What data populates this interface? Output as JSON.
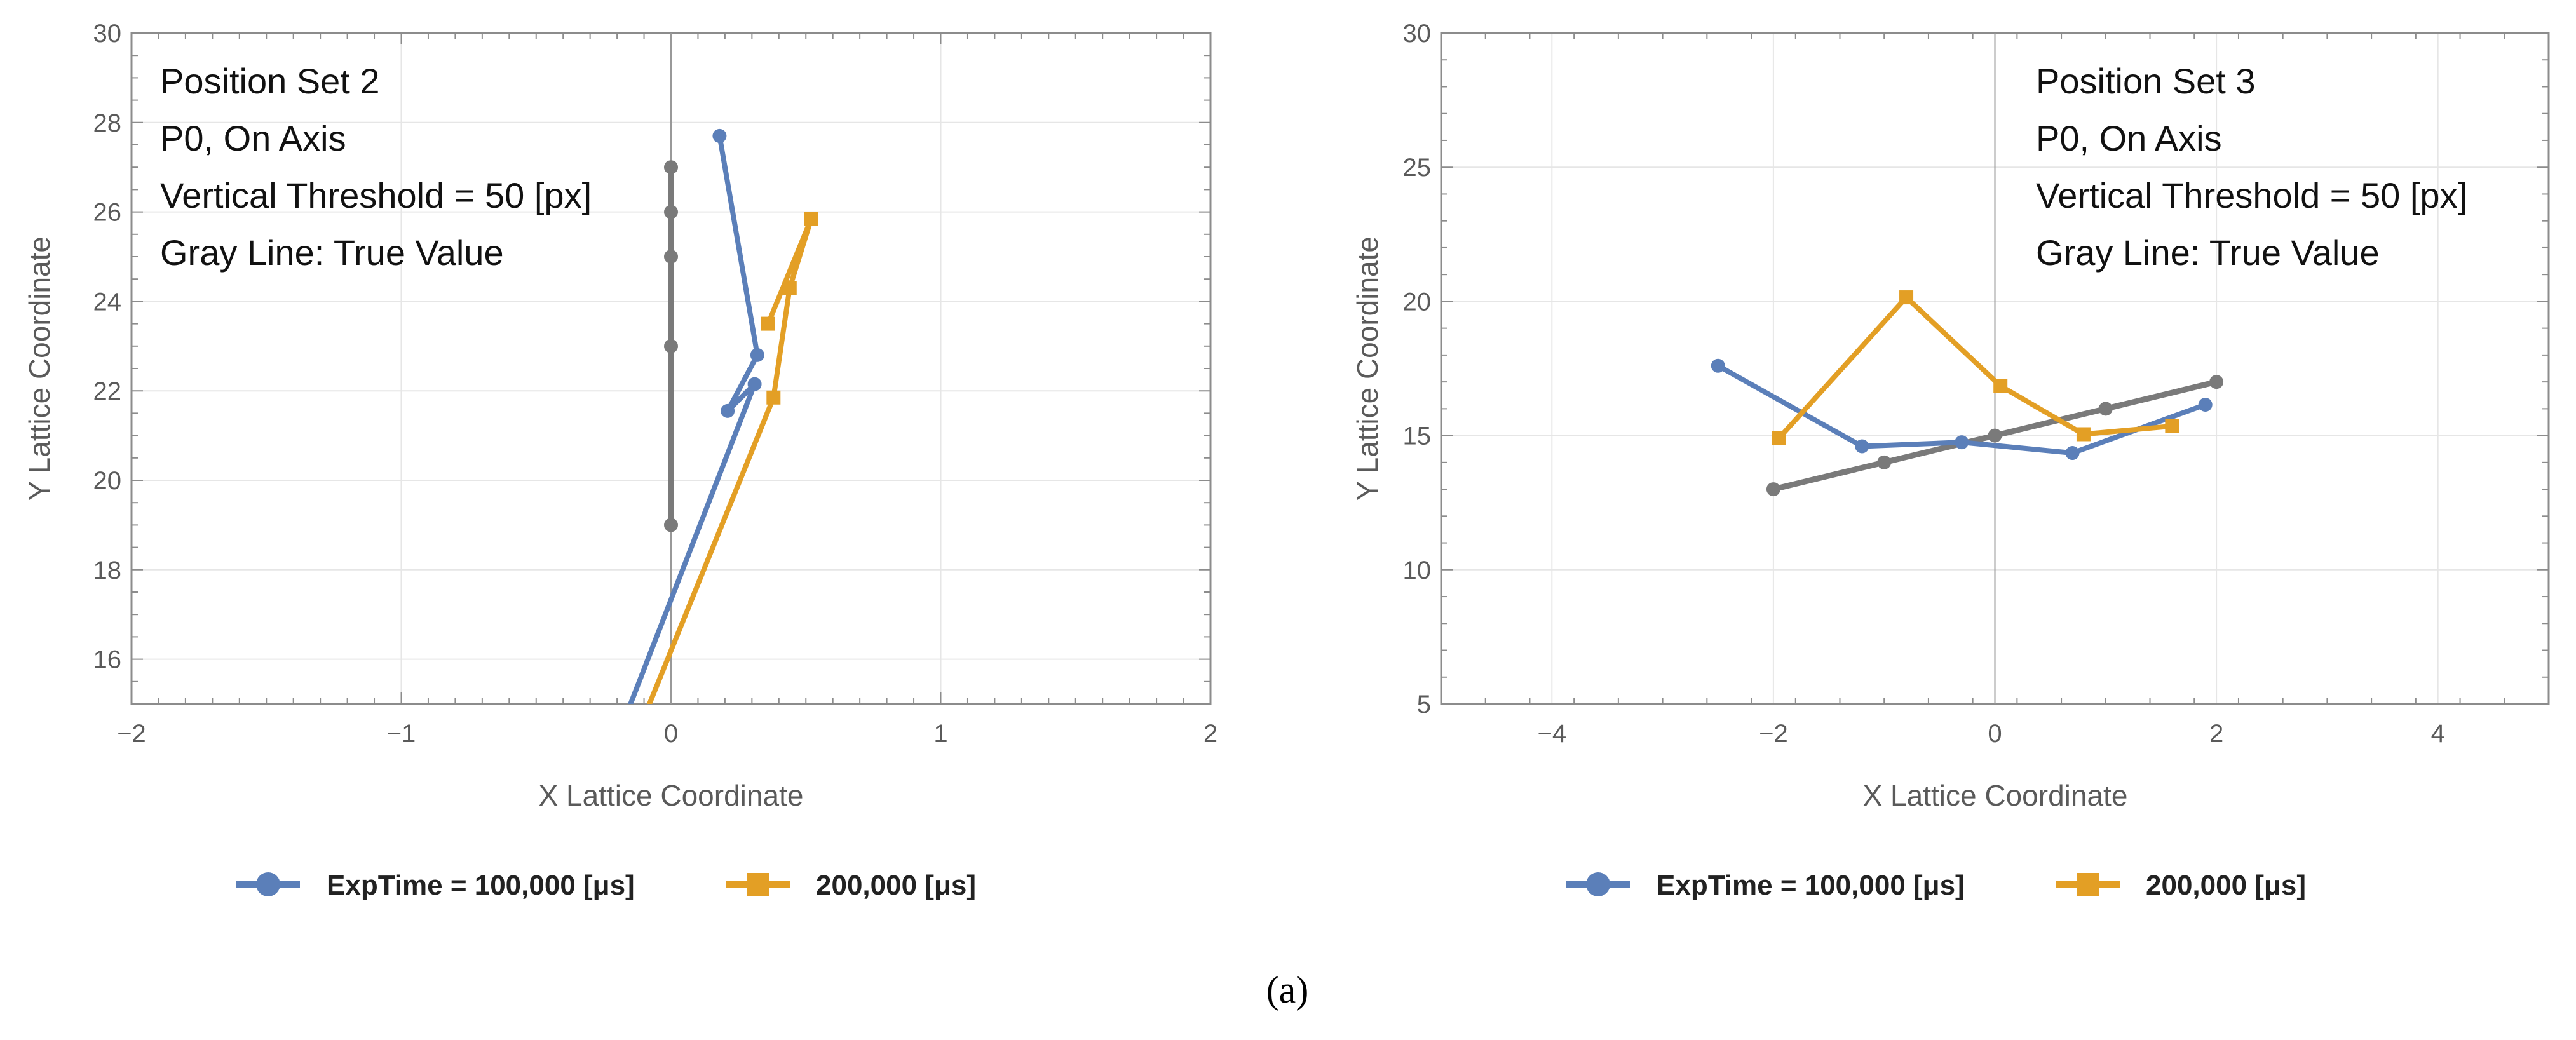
{
  "caption": "(a)",
  "caption_letter": "a",
  "chart_data": [
    {
      "type": "line",
      "id": "left",
      "xlabel": "X Lattice Coordinate",
      "ylabel": "Y Lattice Coordinate",
      "xlim": [
        -2,
        2
      ],
      "ylim": [
        15,
        30
      ],
      "xticks": [
        -2,
        -1,
        0,
        1,
        2
      ],
      "yticks": [
        16,
        18,
        20,
        22,
        24,
        26,
        28,
        30
      ],
      "xtick_labels": [
        "−2",
        "−1",
        "0",
        "1",
        "2"
      ],
      "ytick_labels": [
        "16",
        "18",
        "20",
        "22",
        "24",
        "26",
        "28",
        "30"
      ],
      "grid": true,
      "annotations": [
        "Position Set 2",
        "P0, On Axis",
        "Vertical Threshold = 50 [px]",
        "Gray Line: True Value"
      ],
      "legend": [
        "ExpTime = 100,000 [μs]",
        "200,000 [μs]"
      ],
      "series": [
        {
          "name": "True Value",
          "color": "#7a7a7a",
          "marker": "circle",
          "points": [
            [
              0,
              19
            ],
            [
              0,
              23
            ],
            [
              0,
              25
            ],
            [
              0,
              26
            ],
            [
              0,
              27
            ]
          ]
        },
        {
          "name": "ExpTime = 100,000 [μs]",
          "color": "#5b7fb9",
          "marker": "circle",
          "points": [
            [
              -0.15,
              15
            ],
            [
              0.31,
              22.15
            ],
            [
              0.21,
              21.55
            ],
            [
              0.32,
              22.8
            ],
            [
              0.18,
              27.7
            ]
          ]
        },
        {
          "name": "200,000 [μs]",
          "color": "#e39f25",
          "marker": "square",
          "points": [
            [
              -0.08,
              15
            ],
            [
              0.38,
              21.85
            ],
            [
              0.44,
              24.3
            ],
            [
              0.52,
              25.85
            ],
            [
              0.36,
              23.5
            ]
          ]
        }
      ]
    },
    {
      "type": "line",
      "id": "right",
      "xlabel": "X Lattice Coordinate",
      "ylabel": "Y Lattice Coordinate",
      "xlim": [
        -5,
        5
      ],
      "ylim": [
        5,
        30
      ],
      "xticks": [
        -4,
        -2,
        0,
        2,
        4
      ],
      "yticks": [
        5,
        10,
        15,
        20,
        25,
        30
      ],
      "xtick_labels": [
        "−4",
        "−2",
        "0",
        "2",
        "4"
      ],
      "ytick_labels": [
        "5",
        "10",
        "15",
        "20",
        "25",
        "30"
      ],
      "grid": true,
      "annotations": [
        "Position Set 3",
        "P0, On Axis",
        "Vertical Threshold = 50 [px]",
        "Gray Line: True Value"
      ],
      "legend": [
        "ExpTime = 100,000 [μs]",
        "200,000 [μs]"
      ],
      "series": [
        {
          "name": "True Value",
          "color": "#7a7a7a",
          "marker": "circle",
          "points": [
            [
              -2,
              13
            ],
            [
              -1,
              14
            ],
            [
              0,
              15
            ],
            [
              1,
              16
            ],
            [
              2,
              17
            ]
          ]
        },
        {
          "name": "ExpTime = 100,000 [μs]",
          "color": "#5b7fb9",
          "marker": "circle",
          "points": [
            [
              -2.5,
              17.6
            ],
            [
              -1.2,
              14.6
            ],
            [
              -0.3,
              14.75
            ],
            [
              0.7,
              14.35
            ],
            [
              1.9,
              16.15
            ]
          ]
        },
        {
          "name": "200,000 [μs]",
          "color": "#e39f25",
          "marker": "square",
          "points": [
            [
              -1.95,
              14.9
            ],
            [
              -0.8,
              20.15
            ],
            [
              0.05,
              16.85
            ],
            [
              0.8,
              15.05
            ],
            [
              1.6,
              15.35
            ]
          ]
        }
      ]
    }
  ]
}
